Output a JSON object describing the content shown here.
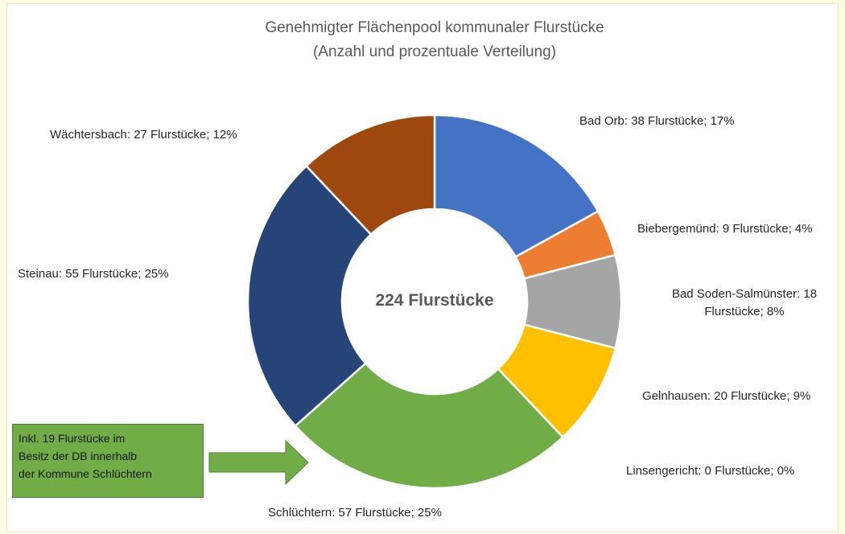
{
  "chart_data": {
    "type": "donut",
    "title": "Genehmigter Flächenpool kommunaler Flurstücke",
    "subtitle": "(Anzahl und prozentuale Verteilung)",
    "center_label": "224 Flurstücke",
    "values": [
      38,
      9,
      18,
      20,
      0,
      57,
      55,
      27
    ],
    "value_labels": [
      "Bad Orb: 38 Flurstücke; 17%",
      "Biebergemünd: 9 Flurstücke; 4%",
      "Bad Soden-Salmünster: 18 Flurstücke; 8%",
      "Gelnhausen: 20 Flurstücke; 9%",
      "Linsengericht: 0 Flurstücke; 0%",
      "Schlüchtern: 57 Flurstücke; 25%",
      "Steinau: 55 Flurstücke; 25%",
      "Wächtersbach: 27 Flurstücke; 12%"
    ],
    "colors": [
      "#4472c4",
      "#ed7d31",
      "#a5a5a5",
      "#ffc000",
      "#5b9bd5",
      "#70ad47",
      "#264478",
      "#9e480e"
    ],
    "annotation": [
      "Inkl. 19 Flurstücke im",
      "Besitz der DB innerhalb",
      "der Kommune Schlüchtern"
    ]
  }
}
